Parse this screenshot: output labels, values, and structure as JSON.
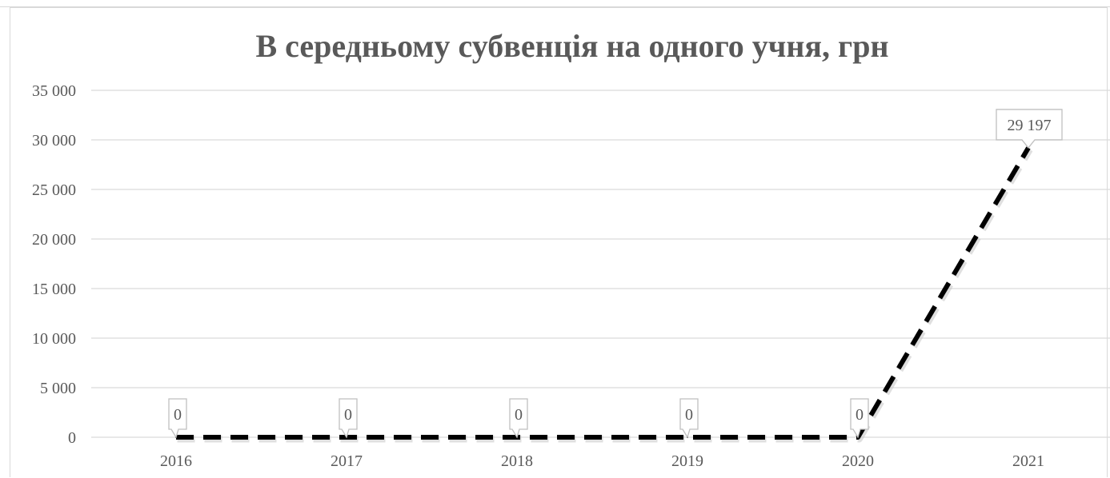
{
  "chart_data": {
    "type": "line",
    "title": "В середньому субвенція на одного учня, грн",
    "categories": [
      "2016",
      "2017",
      "2018",
      "2019",
      "2020",
      "2021"
    ],
    "series": [
      {
        "values": [
          0,
          0,
          0,
          0,
          0,
          29197
        ],
        "data_labels": [
          "0",
          "0",
          "0",
          "0",
          "0",
          "29 197"
        ],
        "color": "#000000",
        "line_style": "dashed"
      }
    ],
    "y_ticks": [
      "0",
      "5 000",
      "10 000",
      "15 000",
      "20 000",
      "25 000",
      "30 000",
      "35 000"
    ],
    "ylim": [
      0,
      35000
    ],
    "grid": true,
    "legend": "none"
  }
}
